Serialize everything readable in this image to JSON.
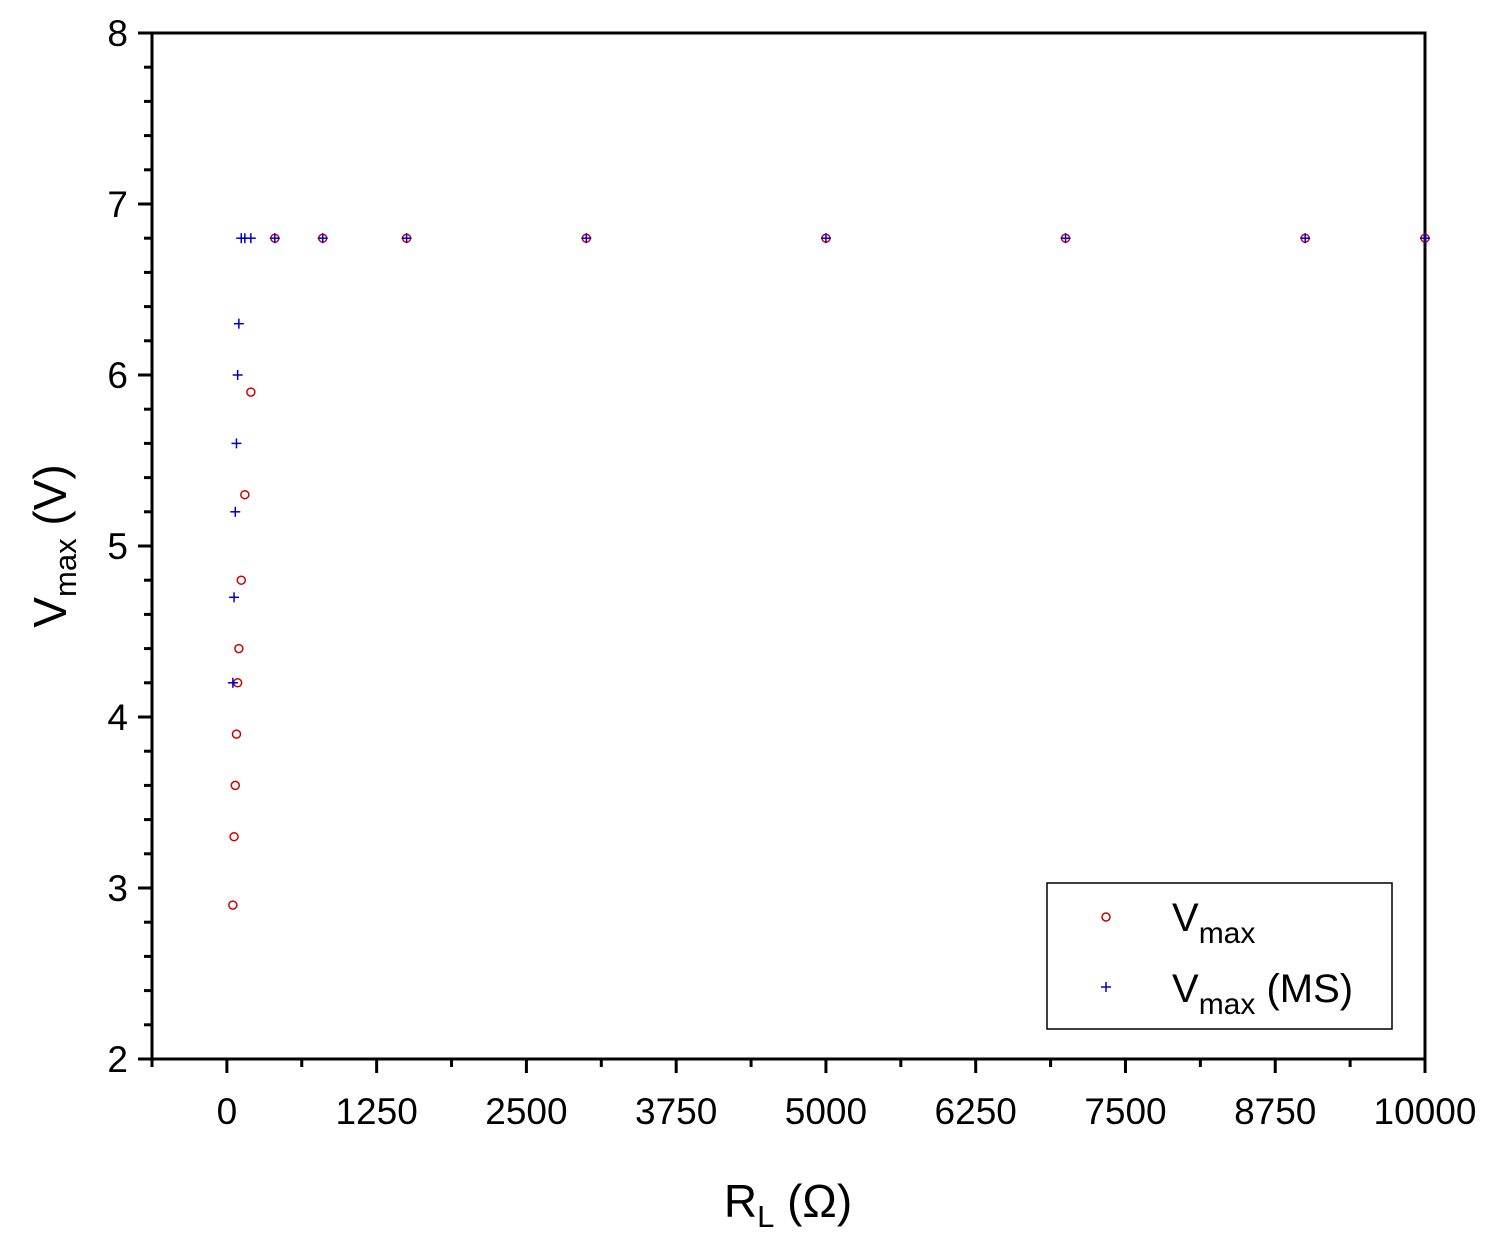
{
  "chart_data": {
    "type": "scatter",
    "xlabel": {
      "main": "R",
      "sub": "L",
      "rest": " (Ω)"
    },
    "ylabel": {
      "main": "V",
      "sub": "max",
      "rest": " (V)"
    },
    "xlim": [
      -625,
      10000
    ],
    "ylim": [
      2,
      8
    ],
    "x_ticks": [
      0,
      1250,
      2500,
      3750,
      5000,
      6250,
      7500,
      8750,
      10000
    ],
    "x_tick_labels": [
      "0",
      "1250",
      "2500",
      "3750",
      "5000",
      "6250",
      "7500",
      "8750",
      "10000"
    ],
    "y_ticks": [
      2,
      3,
      4,
      5,
      6,
      7,
      8
    ],
    "y_tick_labels": [
      "2",
      "3",
      "4",
      "5",
      "6",
      "7",
      "8"
    ],
    "grid": false,
    "legend_position": "bottom-right",
    "series": [
      {
        "name": "Vmax",
        "legend_label": {
          "main": "V",
          "sub": "max",
          "rest": ""
        },
        "marker": "circle",
        "color": "#cc0000",
        "points": [
          [
            50,
            2.9
          ],
          [
            60,
            3.3
          ],
          [
            70,
            3.6
          ],
          [
            80,
            3.9
          ],
          [
            90,
            4.2
          ],
          [
            100,
            4.4
          ],
          [
            120,
            4.8
          ],
          [
            150,
            5.3
          ],
          [
            200,
            5.9
          ],
          [
            400,
            6.8
          ],
          [
            800,
            6.8
          ],
          [
            1500,
            6.8
          ],
          [
            3000,
            6.8
          ],
          [
            5000,
            6.8
          ],
          [
            7000,
            6.8
          ],
          [
            9000,
            6.8
          ],
          [
            10000,
            6.8
          ]
        ]
      },
      {
        "name": "Vmax (MS)",
        "legend_label": {
          "main": "V",
          "sub": "max",
          "rest": " (MS)"
        },
        "marker": "plus",
        "color": "#0000cc",
        "points": [
          [
            50,
            4.2
          ],
          [
            60,
            4.7
          ],
          [
            70,
            5.2
          ],
          [
            80,
            5.6
          ],
          [
            90,
            6.0
          ],
          [
            100,
            6.3
          ],
          [
            120,
            6.8
          ],
          [
            150,
            6.8
          ],
          [
            200,
            6.8
          ],
          [
            400,
            6.8
          ],
          [
            800,
            6.8
          ],
          [
            1500,
            6.8
          ],
          [
            3000,
            6.8
          ],
          [
            5000,
            6.8
          ],
          [
            7000,
            6.8
          ],
          [
            9000,
            6.8
          ],
          [
            10000,
            6.8
          ]
        ]
      }
    ]
  }
}
